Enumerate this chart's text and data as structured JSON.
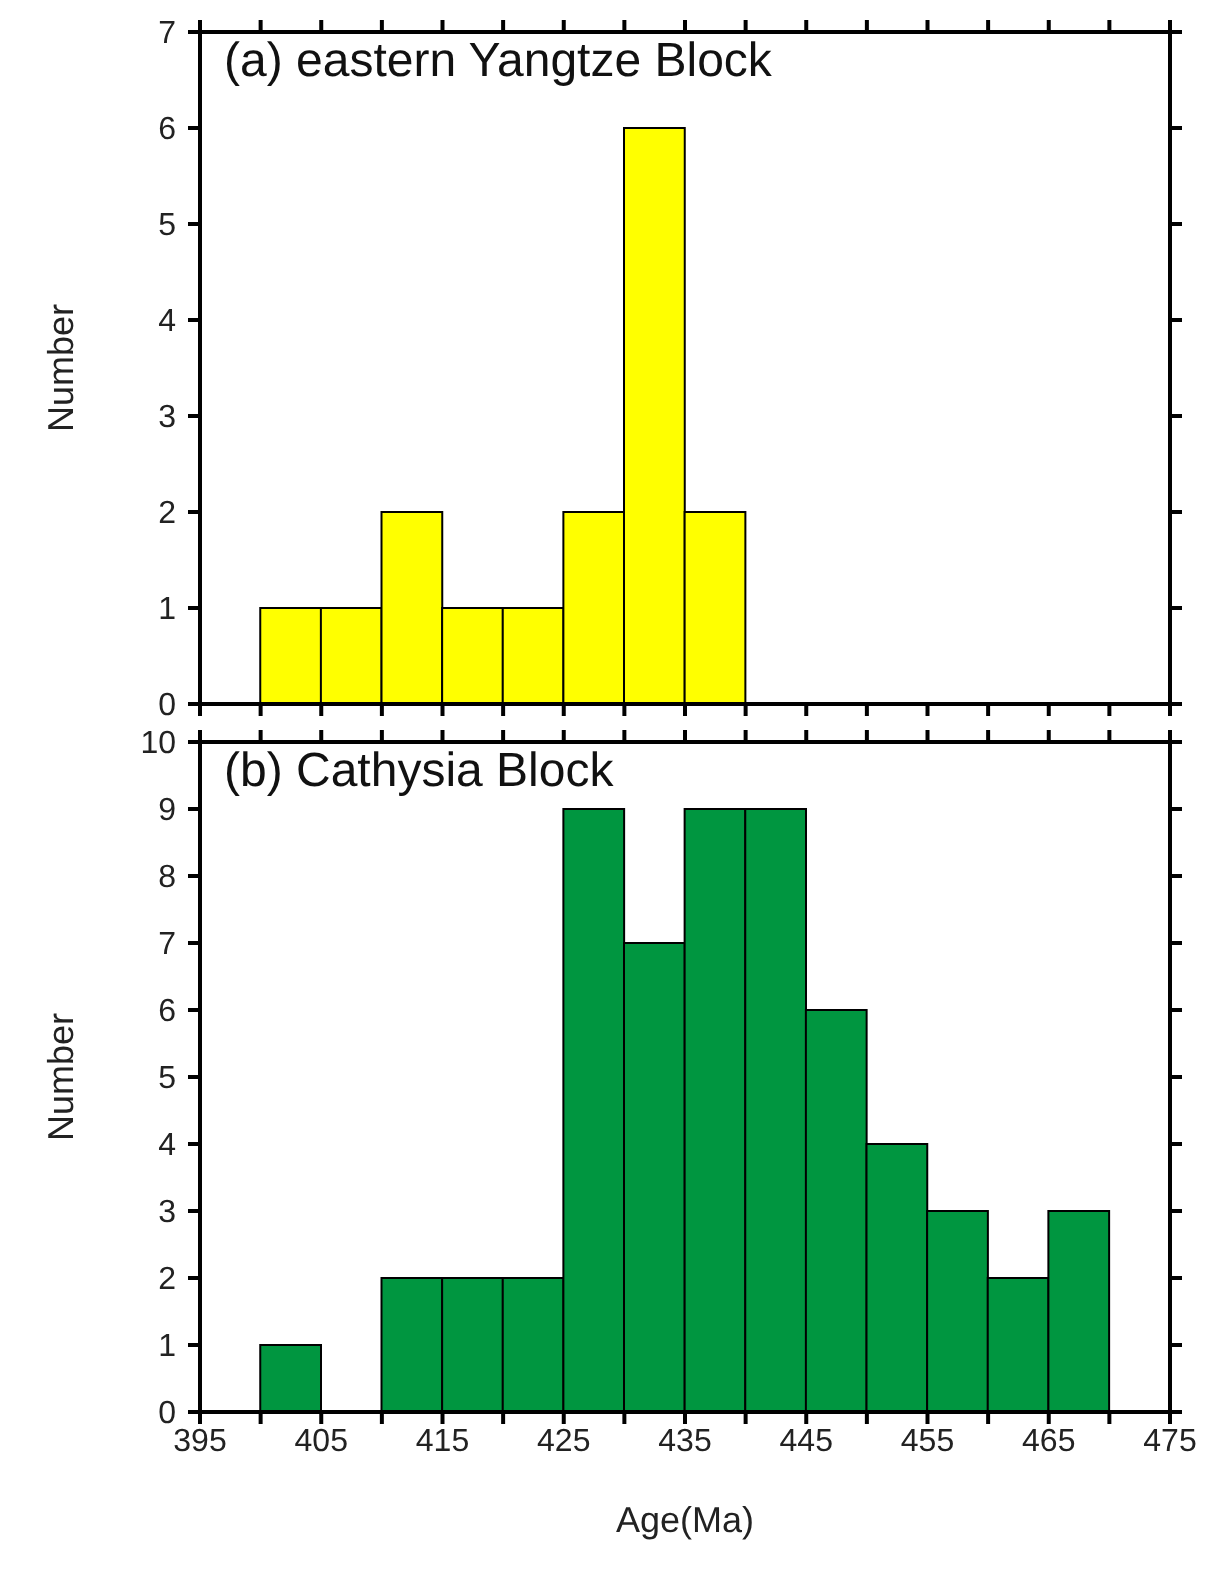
{
  "chart_data": [
    {
      "type": "histogram",
      "title": "(a) eastern Yangtze Block",
      "ylabel": "Number",
      "bins": [
        400,
        405,
        410,
        415,
        420,
        425,
        430,
        435,
        440
      ],
      "values": [
        1,
        1,
        2,
        1,
        1,
        2,
        6,
        2
      ],
      "color": "#ffff00",
      "xlim": [
        395,
        475
      ],
      "xticks": [
        395,
        {
          "value": 400,
          "label": null
        },
        405,
        {
          "value": 410,
          "label": null
        },
        415,
        {
          "value": 420,
          "label": null
        },
        425,
        {
          "value": 430,
          "label": null
        },
        435,
        {
          "value": 440,
          "label": null
        },
        445,
        {
          "value": 450,
          "label": null
        },
        455,
        {
          "value": 460,
          "label": null
        },
        465,
        {
          "value": 470,
          "label": null
        },
        475
      ],
      "ylim": [
        0,
        7
      ],
      "yticks": [
        0,
        1,
        2,
        3,
        4,
        5,
        6,
        7
      ],
      "tick_labels": "y",
      "grid": false,
      "legend": false
    },
    {
      "type": "histogram",
      "title": "(b) Cathysia Block",
      "xlabel": "Age(Ma)",
      "ylabel": "Number",
      "bins": [
        400,
        405,
        410,
        415,
        420,
        425,
        430,
        435,
        440,
        445,
        450,
        455,
        460,
        465,
        470
      ],
      "values": [
        1,
        0,
        2,
        2,
        2,
        9,
        7,
        9,
        9,
        6,
        4,
        3,
        2,
        3
      ],
      "color": "#009640",
      "xlim": [
        395,
        475
      ],
      "xticks": [
        395,
        {
          "value": 400,
          "label": null
        },
        405,
        {
          "value": 410,
          "label": null
        },
        415,
        {
          "value": 420,
          "label": null
        },
        425,
        {
          "value": 430,
          "label": null
        },
        435,
        {
          "value": 440,
          "label": null
        },
        445,
        {
          "value": 450,
          "label": null
        },
        455,
        {
          "value": 460,
          "label": null
        },
        465,
        {
          "value": 470,
          "label": null
        },
        475
      ],
      "ylim": [
        0,
        10
      ],
      "yticks": [
        0,
        1,
        2,
        3,
        4,
        5,
        6,
        7,
        8,
        9,
        10
      ],
      "grid": false,
      "legend": false
    }
  ]
}
